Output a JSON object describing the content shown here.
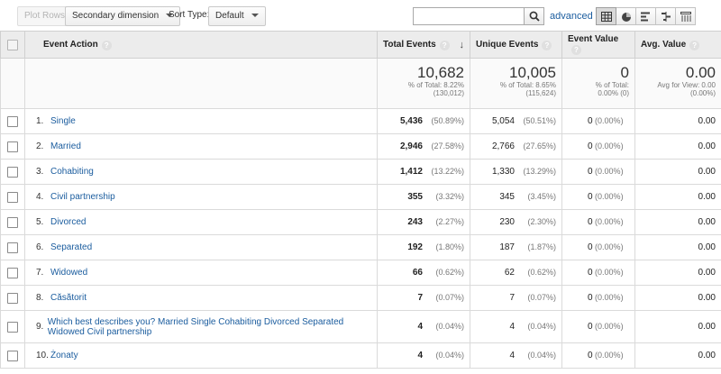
{
  "toolbar": {
    "plot_rows_label": "Plot Rows",
    "secondary_dimension_label": "Secondary dimension",
    "sort_type_label": "Sort Type:",
    "sort_type_value": "Default",
    "search_value": "",
    "advanced_label": "advanced",
    "view_icons": [
      "table-view-icon",
      "pie-view-icon",
      "performance-view-icon",
      "comparison-view-icon",
      "pivot-view-icon"
    ]
  },
  "table": {
    "headers": {
      "event_action": "Event Action",
      "total_events": "Total Events",
      "unique_events": "Unique Events",
      "event_value": "Event Value",
      "avg_value": "Avg. Value"
    },
    "totals": {
      "total_events": {
        "value": "10,682",
        "line1": "% of Total: 8.22%",
        "line2": "(130,012)"
      },
      "unique_events": {
        "value": "10,005",
        "line1": "% of Total: 8.65%",
        "line2": "(115,624)"
      },
      "event_value": {
        "value": "0",
        "line1": "% of Total:",
        "line2": "0.00% (0)"
      },
      "avg_value": {
        "value": "0.00",
        "line1": "Avg for View: 0.00",
        "line2": "(0.00%)"
      }
    },
    "rows": [
      {
        "rank": "1.",
        "action": "Single",
        "total": "5,436",
        "total_pct": "(50.89%)",
        "unique": "5,054",
        "unique_pct": "(50.51%)",
        "value": "0",
        "value_pct": "(0.00%)",
        "avg": "0.00"
      },
      {
        "rank": "2.",
        "action": "Married",
        "total": "2,946",
        "total_pct": "(27.58%)",
        "unique": "2,766",
        "unique_pct": "(27.65%)",
        "value": "0",
        "value_pct": "(0.00%)",
        "avg": "0.00"
      },
      {
        "rank": "3.",
        "action": "Cohabiting",
        "total": "1,412",
        "total_pct": "(13.22%)",
        "unique": "1,330",
        "unique_pct": "(13.29%)",
        "value": "0",
        "value_pct": "(0.00%)",
        "avg": "0.00"
      },
      {
        "rank": "4.",
        "action": "Civil partnership",
        "total": "355",
        "total_pct": "(3.32%)",
        "unique": "345",
        "unique_pct": "(3.45%)",
        "value": "0",
        "value_pct": "(0.00%)",
        "avg": "0.00"
      },
      {
        "rank": "5.",
        "action": "Divorced",
        "total": "243",
        "total_pct": "(2.27%)",
        "unique": "230",
        "unique_pct": "(2.30%)",
        "value": "0",
        "value_pct": "(0.00%)",
        "avg": "0.00"
      },
      {
        "rank": "6.",
        "action": "Separated",
        "total": "192",
        "total_pct": "(1.80%)",
        "unique": "187",
        "unique_pct": "(1.87%)",
        "value": "0",
        "value_pct": "(0.00%)",
        "avg": "0.00"
      },
      {
        "rank": "7.",
        "action": "Widowed",
        "total": "66",
        "total_pct": "(0.62%)",
        "unique": "62",
        "unique_pct": "(0.62%)",
        "value": "0",
        "value_pct": "(0.00%)",
        "avg": "0.00"
      },
      {
        "rank": "8.",
        "action": "Căsătorit",
        "total": "7",
        "total_pct": "(0.07%)",
        "unique": "7",
        "unique_pct": "(0.07%)",
        "value": "0",
        "value_pct": "(0.00%)",
        "avg": "0.00"
      },
      {
        "rank": "9.",
        "action": "Which best describes you? Married Single Cohabiting Divorced Separated Widowed Civil partnership",
        "total": "4",
        "total_pct": "(0.04%)",
        "unique": "4",
        "unique_pct": "(0.04%)",
        "value": "0",
        "value_pct": "(0.00%)",
        "avg": "0.00"
      },
      {
        "rank": "10.",
        "action": "Żonaty",
        "total": "4",
        "total_pct": "(0.04%)",
        "unique": "4",
        "unique_pct": "(0.04%)",
        "value": "0",
        "value_pct": "(0.00%)",
        "avg": "0.00"
      }
    ]
  }
}
